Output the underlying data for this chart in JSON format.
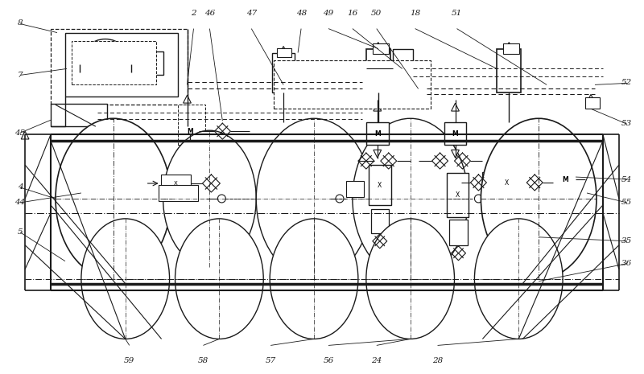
{
  "bg_color": "#ffffff",
  "line_color": "#1a1a1a",
  "fig_width": 8.0,
  "fig_height": 4.65,
  "dpi": 100,
  "labels_top": {
    "items": [
      "2",
      "46",
      "47",
      "48",
      "49",
      "16",
      "50",
      "18",
      "51"
    ],
    "x": [
      0.3,
      0.325,
      0.39,
      0.468,
      0.51,
      0.548,
      0.585,
      0.645,
      0.71
    ],
    "y": [
      0.965,
      0.965,
      0.965,
      0.965,
      0.965,
      0.965,
      0.965,
      0.965,
      0.965
    ]
  },
  "labels_left": {
    "items": [
      "8",
      "7",
      "45",
      "4",
      "44",
      "5"
    ],
    "x": [
      0.03,
      0.03,
      0.03,
      0.03,
      0.03,
      0.03
    ],
    "y": [
      0.94,
      0.8,
      0.645,
      0.5,
      0.46,
      0.38
    ]
  },
  "labels_right": {
    "items": [
      "52",
      "53",
      "54",
      "55",
      "35",
      "36"
    ],
    "x": [
      0.975,
      0.975,
      0.975,
      0.975,
      0.975,
      0.975
    ],
    "y": [
      0.78,
      0.67,
      0.52,
      0.46,
      0.355,
      0.295
    ]
  },
  "labels_bot": {
    "items": [
      "59",
      "58",
      "57",
      "56",
      "24",
      "28"
    ],
    "x": [
      0.2,
      0.315,
      0.42,
      0.51,
      0.585,
      0.68
    ],
    "y": [
      0.035,
      0.035,
      0.035,
      0.035,
      0.035,
      0.035
    ]
  }
}
